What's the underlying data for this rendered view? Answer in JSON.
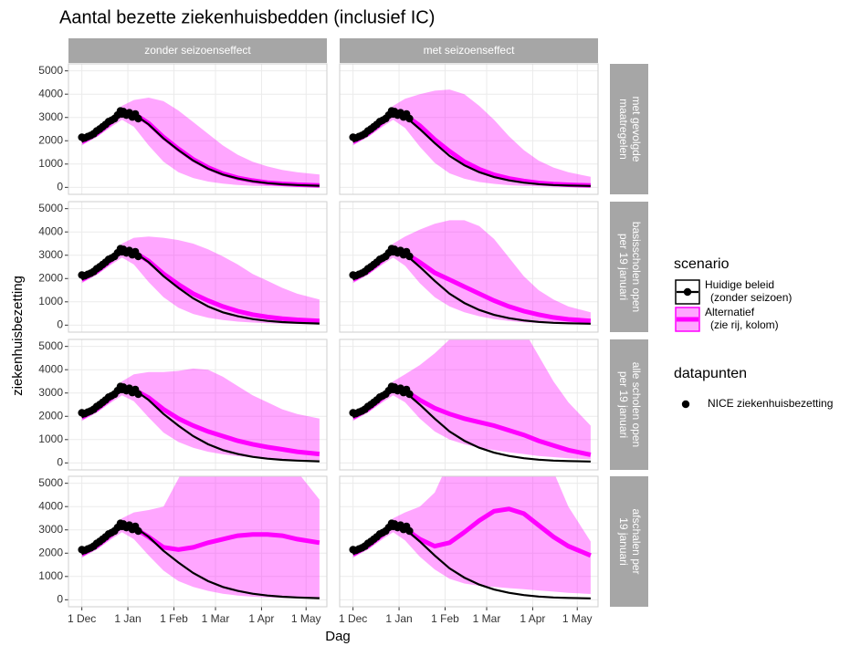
{
  "chart_data": {
    "type": "line",
    "title": "Aantal bezette ziekenhuisbedden (inclusief IC)",
    "x_label": "Dag",
    "y_label": "ziekenhuisbezetting",
    "xlim": [
      -9,
      165
    ],
    "xticks": [
      {
        "value": 0,
        "label": "1 Dec"
      },
      {
        "value": 31,
        "label": "1 Jan"
      },
      {
        "value": 62,
        "label": "1 Feb"
      },
      {
        "value": 90,
        "label": "1 Mar"
      },
      {
        "value": 121,
        "label": "1 Apr"
      },
      {
        "value": 151,
        "label": "1 May"
      }
    ],
    "ylim": [
      -300,
      5300
    ],
    "yticks": [
      0,
      1000,
      2000,
      3000,
      4000,
      5000
    ],
    "grid": true,
    "columns": [
      "zonder seizoenseffect",
      "met seizoenseffect"
    ],
    "rows": [
      [
        "met gevolgde",
        "maatregelen"
      ],
      [
        "basisscholen open",
        "per 19 januari"
      ],
      [
        "alle scholen open",
        "per 19 januari"
      ],
      [
        "afschalen per",
        "19 januari"
      ]
    ],
    "legend_title": "scenario",
    "series": [
      {
        "name": [
          "Huidige beleid",
          "(zonder seizoen)"
        ],
        "color": "#000000"
      },
      {
        "name": [
          "Alternatief",
          "(zie rij, kolom)"
        ],
        "color": "#ff00ff"
      }
    ],
    "points": {
      "title": "datapunten",
      "name": "NICE ziekenhuisbezetting",
      "color": "#000000",
      "x": [
        0,
        2,
        4,
        6,
        8,
        10,
        12,
        14,
        16,
        18,
        20,
        22,
        24,
        26,
        27,
        28,
        30,
        32,
        34,
        36,
        38
      ],
      "values": [
        2150,
        2120,
        2180,
        2230,
        2300,
        2420,
        2500,
        2600,
        2700,
        2820,
        2880,
        2950,
        3100,
        3280,
        3150,
        3250,
        3100,
        3200,
        3020,
        3150,
        2950
      ]
    },
    "x": [
      0,
      10,
      20,
      27,
      35,
      45,
      55,
      65,
      75,
      85,
      95,
      105,
      115,
      125,
      135,
      145,
      160
    ],
    "panels": [
      {
        "values": [
          [
            1950,
            2300,
            2800,
            3200,
            3150,
            2700,
            2100,
            1600,
            1150,
            800,
            550,
            380,
            260,
            180,
            130,
            100,
            70
          ],
          [
            1950,
            2300,
            2800,
            3200,
            3170,
            2750,
            2150,
            1650,
            1200,
            850,
            590,
            410,
            290,
            200,
            150,
            115,
            85
          ]
        ],
        "band": [
          [
            1800,
            2150,
            2600,
            2900,
            2600,
            1800,
            1100,
            650,
            400,
            250,
            160,
            100,
            70,
            50,
            40,
            30,
            20
          ],
          [
            2100,
            2450,
            3000,
            3500,
            3750,
            3850,
            3700,
            3300,
            2800,
            2300,
            1800,
            1400,
            1100,
            900,
            750,
            650,
            550
          ]
        ]
      },
      {
        "values": [
          [
            1950,
            2300,
            2800,
            3200,
            3050,
            2500,
            1900,
            1350,
            950,
            650,
            440,
            300,
            200,
            140,
            100,
            80,
            60
          ],
          [
            1950,
            2300,
            2800,
            3200,
            3100,
            2650,
            2050,
            1550,
            1100,
            780,
            540,
            380,
            270,
            190,
            140,
            110,
            80
          ]
        ],
        "band": [
          [
            1800,
            2150,
            2600,
            2900,
            2550,
            1750,
            1050,
            600,
            370,
            230,
            150,
            90,
            60,
            45,
            35,
            25,
            20
          ],
          [
            2100,
            2450,
            3000,
            3500,
            3800,
            4000,
            4150,
            4200,
            4000,
            3500,
            2900,
            2200,
            1600,
            1150,
            850,
            650,
            450
          ]
        ]
      },
      {
        "values": [
          [
            1950,
            2300,
            2800,
            3200,
            3150,
            2700,
            2100,
            1600,
            1150,
            800,
            550,
            380,
            260,
            180,
            130,
            100,
            70
          ],
          [
            1950,
            2300,
            2800,
            3200,
            3150,
            2750,
            2200,
            1750,
            1350,
            1050,
            800,
            600,
            450,
            350,
            280,
            230,
            180
          ]
        ],
        "band": [
          [
            1800,
            2150,
            2600,
            2900,
            2600,
            1850,
            1200,
            750,
            480,
            320,
            220,
            150,
            110,
            80,
            60,
            50,
            40
          ],
          [
            2100,
            2450,
            3000,
            3500,
            3750,
            3800,
            3750,
            3650,
            3500,
            3250,
            2950,
            2600,
            2200,
            1900,
            1600,
            1350,
            1100
          ]
        ]
      },
      {
        "values": [
          [
            1950,
            2300,
            2800,
            3200,
            3050,
            2500,
            1900,
            1350,
            950,
            650,
            440,
            300,
            200,
            140,
            100,
            80,
            60
          ],
          [
            1950,
            2300,
            2800,
            3200,
            3100,
            2700,
            2250,
            1950,
            1650,
            1350,
            1050,
            800,
            600,
            450,
            330,
            250,
            180
          ]
        ],
        "band": [
          [
            1800,
            2150,
            2600,
            2900,
            2550,
            1800,
            1200,
            800,
            550,
            380,
            260,
            180,
            120,
            90,
            70,
            55,
            40
          ],
          [
            2100,
            2450,
            3000,
            3500,
            3800,
            4100,
            4350,
            4500,
            4500,
            4250,
            3700,
            2900,
            2100,
            1500,
            1100,
            800,
            550
          ]
        ]
      },
      {
        "values": [
          [
            1950,
            2300,
            2800,
            3200,
            3150,
            2700,
            2100,
            1600,
            1150,
            800,
            550,
            380,
            260,
            180,
            130,
            100,
            70
          ],
          [
            1950,
            2300,
            2800,
            3200,
            3150,
            2800,
            2300,
            1900,
            1600,
            1350,
            1150,
            950,
            800,
            680,
            580,
            480,
            380
          ]
        ],
        "band": [
          [
            1800,
            2150,
            2600,
            2900,
            2650,
            1950,
            1300,
            900,
            650,
            480,
            370,
            290,
            230,
            190,
            160,
            140,
            120
          ],
          [
            2100,
            2450,
            3000,
            3500,
            3800,
            3900,
            3900,
            3950,
            4050,
            4000,
            3700,
            3300,
            2900,
            2600,
            2300,
            2100,
            1900
          ]
        ]
      },
      {
        "values": [
          [
            1950,
            2300,
            2800,
            3200,
            3050,
            2500,
            1900,
            1350,
            950,
            650,
            440,
            300,
            200,
            140,
            100,
            80,
            60
          ],
          [
            1950,
            2300,
            2800,
            3200,
            3100,
            2700,
            2350,
            2100,
            1900,
            1750,
            1600,
            1400,
            1200,
            950,
            750,
            550,
            350
          ]
        ],
        "band": [
          [
            1800,
            2150,
            2600,
            2900,
            2600,
            1900,
            1350,
            1000,
            800,
            650,
            550,
            450,
            380,
            300,
            250,
            200,
            150
          ],
          [
            2100,
            2450,
            3000,
            3500,
            3800,
            4200,
            4700,
            5300,
            5800,
            6200,
            6400,
            6300,
            5700,
            4600,
            3500,
            2600,
            1600
          ]
        ]
      },
      {
        "values": [
          [
            1950,
            2300,
            2800,
            3200,
            3150,
            2700,
            2100,
            1600,
            1150,
            800,
            550,
            380,
            260,
            180,
            130,
            100,
            70
          ],
          [
            1950,
            2300,
            2800,
            3200,
            3100,
            2700,
            2250,
            2150,
            2250,
            2450,
            2600,
            2750,
            2800,
            2800,
            2750,
            2600,
            2450
          ]
        ],
        "band": [
          [
            1800,
            2150,
            2600,
            2900,
            2600,
            1900,
            1250,
            800,
            550,
            380,
            260,
            180,
            130,
            100,
            80,
            60,
            50
          ],
          [
            2100,
            2450,
            3000,
            3500,
            3750,
            3850,
            4000,
            5200,
            6500,
            7500,
            8000,
            8000,
            7500,
            7000,
            6500,
            5500,
            4300
          ]
        ]
      },
      {
        "values": [
          [
            1950,
            2300,
            2800,
            3200,
            3050,
            2500,
            1900,
            1350,
            950,
            650,
            440,
            300,
            200,
            140,
            100,
            80,
            60
          ],
          [
            1950,
            2300,
            2800,
            3200,
            3050,
            2600,
            2300,
            2450,
            2900,
            3400,
            3800,
            3900,
            3700,
            3200,
            2700,
            2300,
            1900
          ]
        ],
        "band": [
          [
            1800,
            2150,
            2600,
            2900,
            2550,
            1850,
            1300,
            900,
            700,
            600,
            550,
            500,
            450,
            400,
            350,
            300,
            250
          ],
          [
            2100,
            2450,
            3000,
            3500,
            3750,
            4000,
            4600,
            6000,
            7500,
            8500,
            9000,
            9000,
            8000,
            7000,
            5500,
            4000,
            2500
          ]
        ]
      }
    ]
  }
}
